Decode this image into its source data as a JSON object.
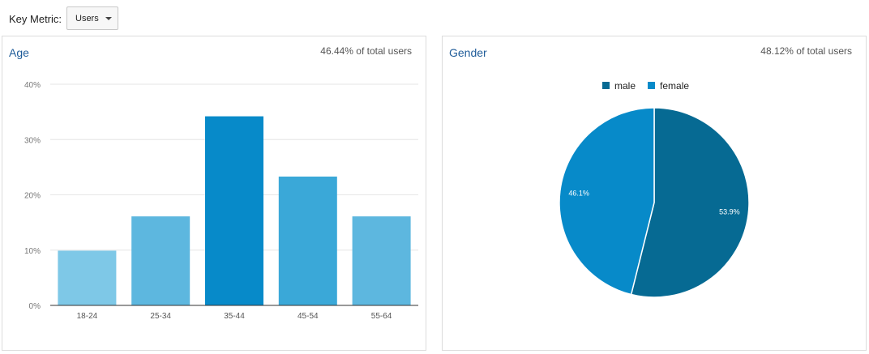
{
  "toolbar": {
    "key_metric_label": "Key Metric:",
    "selected_metric": "Users"
  },
  "age_panel": {
    "title": "Age",
    "note": "46.44% of total users"
  },
  "gender_panel": {
    "title": "Gender",
    "note": "48.12% of total users"
  },
  "chart_data": [
    {
      "type": "bar",
      "title": "Age",
      "categories": [
        "18-24",
        "25-34",
        "35-44",
        "45-54",
        "55-64"
      ],
      "values": [
        9.9,
        16.1,
        34.2,
        23.3,
        16.1
      ],
      "y_ticks": [
        "0%",
        "10%",
        "20%",
        "30%",
        "40%"
      ],
      "ylim": [
        0,
        40
      ],
      "colors": [
        "#7ec8e7",
        "#5db7df",
        "#078ac9",
        "#3aa8d8",
        "#5db7df"
      ],
      "grid": true
    },
    {
      "type": "pie",
      "title": "Gender",
      "legend_position": "top",
      "slices": [
        {
          "name": "male",
          "value": 53.9,
          "label": "53.9%",
          "color": "#066a93"
        },
        {
          "name": "female",
          "value": 46.1,
          "label": "46.1%",
          "color": "#078ac9"
        }
      ]
    }
  ]
}
